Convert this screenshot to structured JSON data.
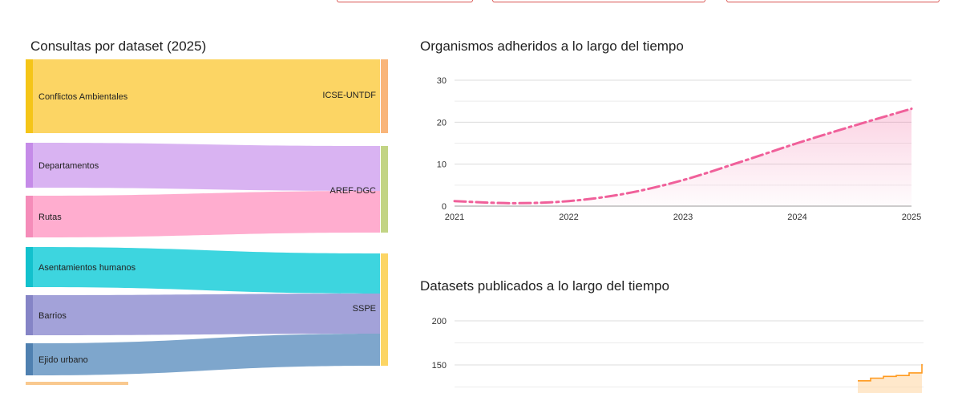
{
  "sankey": {
    "title": "Consultas por dataset (2025)",
    "sources": [
      {
        "label": "Conflictos Ambientales",
        "color": "#fcd564",
        "bar": "#f5c518",
        "target": "ICSE-UNTDF"
      },
      {
        "label": "Departamentos",
        "color": "#d9b3f2",
        "bar": "#c58be8",
        "target": "AREF-DGC"
      },
      {
        "label": "Rutas",
        "color": "#ffadcf",
        "bar": "#f58cb9",
        "target": "AREF-DGC"
      },
      {
        "label": "Asentamientos humanos",
        "color": "#3dd5df",
        "bar": "#12c1cd",
        "target": "SSPE"
      },
      {
        "label": "Barrios",
        "color": "#a3a2d9",
        "bar": "#8584c6",
        "target": "SSPE"
      },
      {
        "label": "Ejido urbano",
        "color": "#7ea6cc",
        "bar": "#4f80b0",
        "target": "SSPE"
      }
    ],
    "targets": [
      {
        "label": "ICSE-UNTDF",
        "color": "#f9b57a"
      },
      {
        "label": "AREF-DGC",
        "color": "#c2d484"
      },
      {
        "label": "SSPE",
        "color": "#fcd564"
      }
    ]
  },
  "chart_organismos": {
    "title": "Organismos adheridos a lo largo del tiempo",
    "chart_data": {
      "type": "area",
      "x_ticks": [
        "2021",
        "2022",
        "2023",
        "2024",
        "2025"
      ],
      "y_ticks": [
        "0",
        "10",
        "20",
        "30"
      ],
      "ylim": [
        0,
        30
      ],
      "xlim": [
        2021,
        2025
      ],
      "series": [
        {
          "x": [
            2021,
            2021.5,
            2022,
            2022.5,
            2023,
            2023.5,
            2024,
            2024.5,
            2025
          ],
          "values": [
            1.2,
            0.7,
            1.2,
            3,
            6.2,
            10.5,
            15,
            19.2,
            23.2
          ],
          "color": "#f0609a",
          "line_style": "dash-dot"
        }
      ],
      "grid": true
    }
  },
  "chart_datasets": {
    "title": "Datasets publicados a lo largo del tiempo",
    "chart_data": {
      "type": "area",
      "y_ticks": [
        "200",
        "150"
      ],
      "ylim": [
        100,
        220
      ],
      "series": [
        {
          "x": [
            0,
            0.2,
            0.4,
            0.6,
            0.8,
            1.0
          ],
          "values": [
            132,
            135,
            137,
            138,
            141,
            151
          ],
          "color": "#ff9a1f"
        }
      ],
      "grid": true
    }
  }
}
